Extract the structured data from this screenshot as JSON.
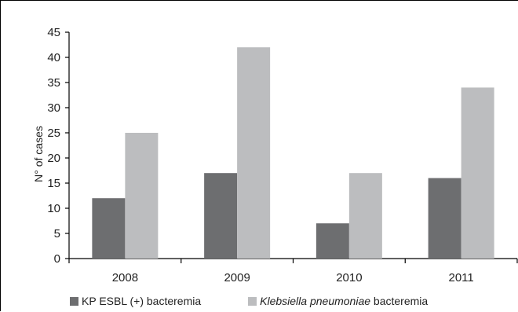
{
  "chart_data": {
    "type": "bar",
    "categories": [
      "2008",
      "2009",
      "2010",
      "2011"
    ],
    "series": [
      {
        "name": "KP ESBL (+) bacteremia",
        "values": [
          12,
          17,
          7,
          16
        ],
        "color": "#6d6e70"
      },
      {
        "name_italic": "Klebsiella pneumoniae",
        "name_rest": " bacteremia",
        "values": [
          25,
          42,
          17,
          34
        ],
        "color": "#bcbdbf"
      }
    ],
    "ylabel": "N° of cases",
    "ylim": [
      0,
      45
    ],
    "yticks": [
      "0",
      "5",
      "10",
      "15",
      "20",
      "25",
      "30",
      "35",
      "40",
      "45"
    ],
    "grid": false,
    "legend": "bottom"
  }
}
